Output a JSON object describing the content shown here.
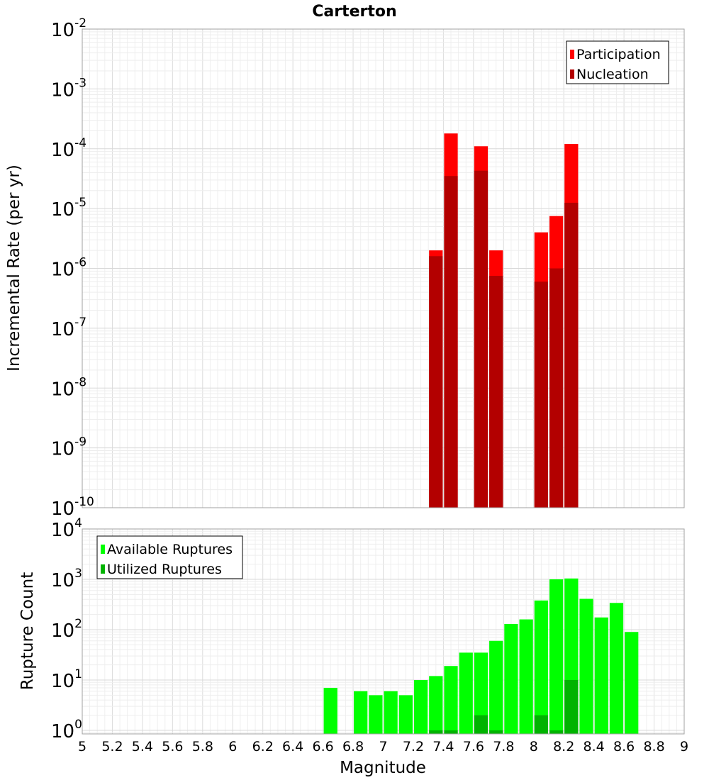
{
  "chart_data": [
    {
      "type": "bar",
      "title": "Carterton",
      "xlabel": "Magnitude",
      "ylabel": "Incremental Rate (per yr)",
      "yscale": "log",
      "ylim_exp": [
        -10,
        -2
      ],
      "xlim": [
        5,
        9
      ],
      "y_tick_exponents": [
        "-10",
        "-9",
        "-8",
        "-7",
        "-6",
        "-5",
        "-4",
        "-3",
        "-2"
      ],
      "legend": {
        "position": "top-right",
        "entries": [
          "Participation",
          "Nucleation"
        ]
      },
      "colors": {
        "Participation": "#ff0000",
        "Nucleation": "#b30000"
      },
      "series": [
        {
          "name": "Participation",
          "x": [
            7.35,
            7.45,
            7.65,
            7.75,
            8.05,
            8.15,
            8.25
          ],
          "values": [
            2e-06,
            0.00018,
            0.00011,
            2e-06,
            4e-06,
            7.5e-06,
            0.00012
          ]
        },
        {
          "name": "Nucleation",
          "x": [
            7.35,
            7.45,
            7.65,
            7.75,
            8.05,
            8.15,
            8.25
          ],
          "values": [
            1.6e-06,
            3.5e-05,
            4.3e-05,
            7.5e-07,
            6e-07,
            1e-06,
            1.25e-05
          ]
        }
      ]
    },
    {
      "type": "bar",
      "xlabel": "Magnitude",
      "ylabel": "Rupture Count",
      "yscale": "log",
      "ylim_exp": [
        -0.07,
        4
      ],
      "xlim": [
        5,
        9
      ],
      "y_tick_exponents": [
        "0",
        "1",
        "2",
        "3",
        "4"
      ],
      "x_ticks": [
        "5",
        "5.2",
        "5.4",
        "5.6",
        "5.8",
        "6",
        "6.2",
        "6.4",
        "6.6",
        "6.8",
        "7",
        "7.2",
        "7.4",
        "7.6",
        "7.8",
        "8",
        "8.2",
        "8.4",
        "8.6",
        "8.8",
        "9"
      ],
      "legend": {
        "position": "top-left",
        "entries": [
          "Available Ruptures",
          "Utilized Ruptures"
        ]
      },
      "colors": {
        "Available Ruptures": "#00ff00",
        "Utilized Ruptures": "#00b300"
      },
      "series": [
        {
          "name": "Available Ruptures",
          "x": [
            6.65,
            6.85,
            6.95,
            7.05,
            7.15,
            7.25,
            7.35,
            7.45,
            7.55,
            7.65,
            7.75,
            7.85,
            7.95,
            8.05,
            8.15,
            8.25,
            8.35,
            8.45,
            8.55,
            8.65
          ],
          "values": [
            7,
            6,
            5,
            6,
            5,
            10,
            12,
            19,
            35,
            35,
            60,
            130,
            160,
            380,
            1000,
            1040,
            410,
            175,
            340,
            90
          ]
        },
        {
          "name": "Utilized Ruptures",
          "x": [
            7.35,
            7.45,
            7.65,
            7.75,
            8.05,
            8.15,
            8.25
          ],
          "values": [
            1,
            1,
            2,
            1,
            2,
            1,
            10
          ]
        }
      ]
    }
  ]
}
